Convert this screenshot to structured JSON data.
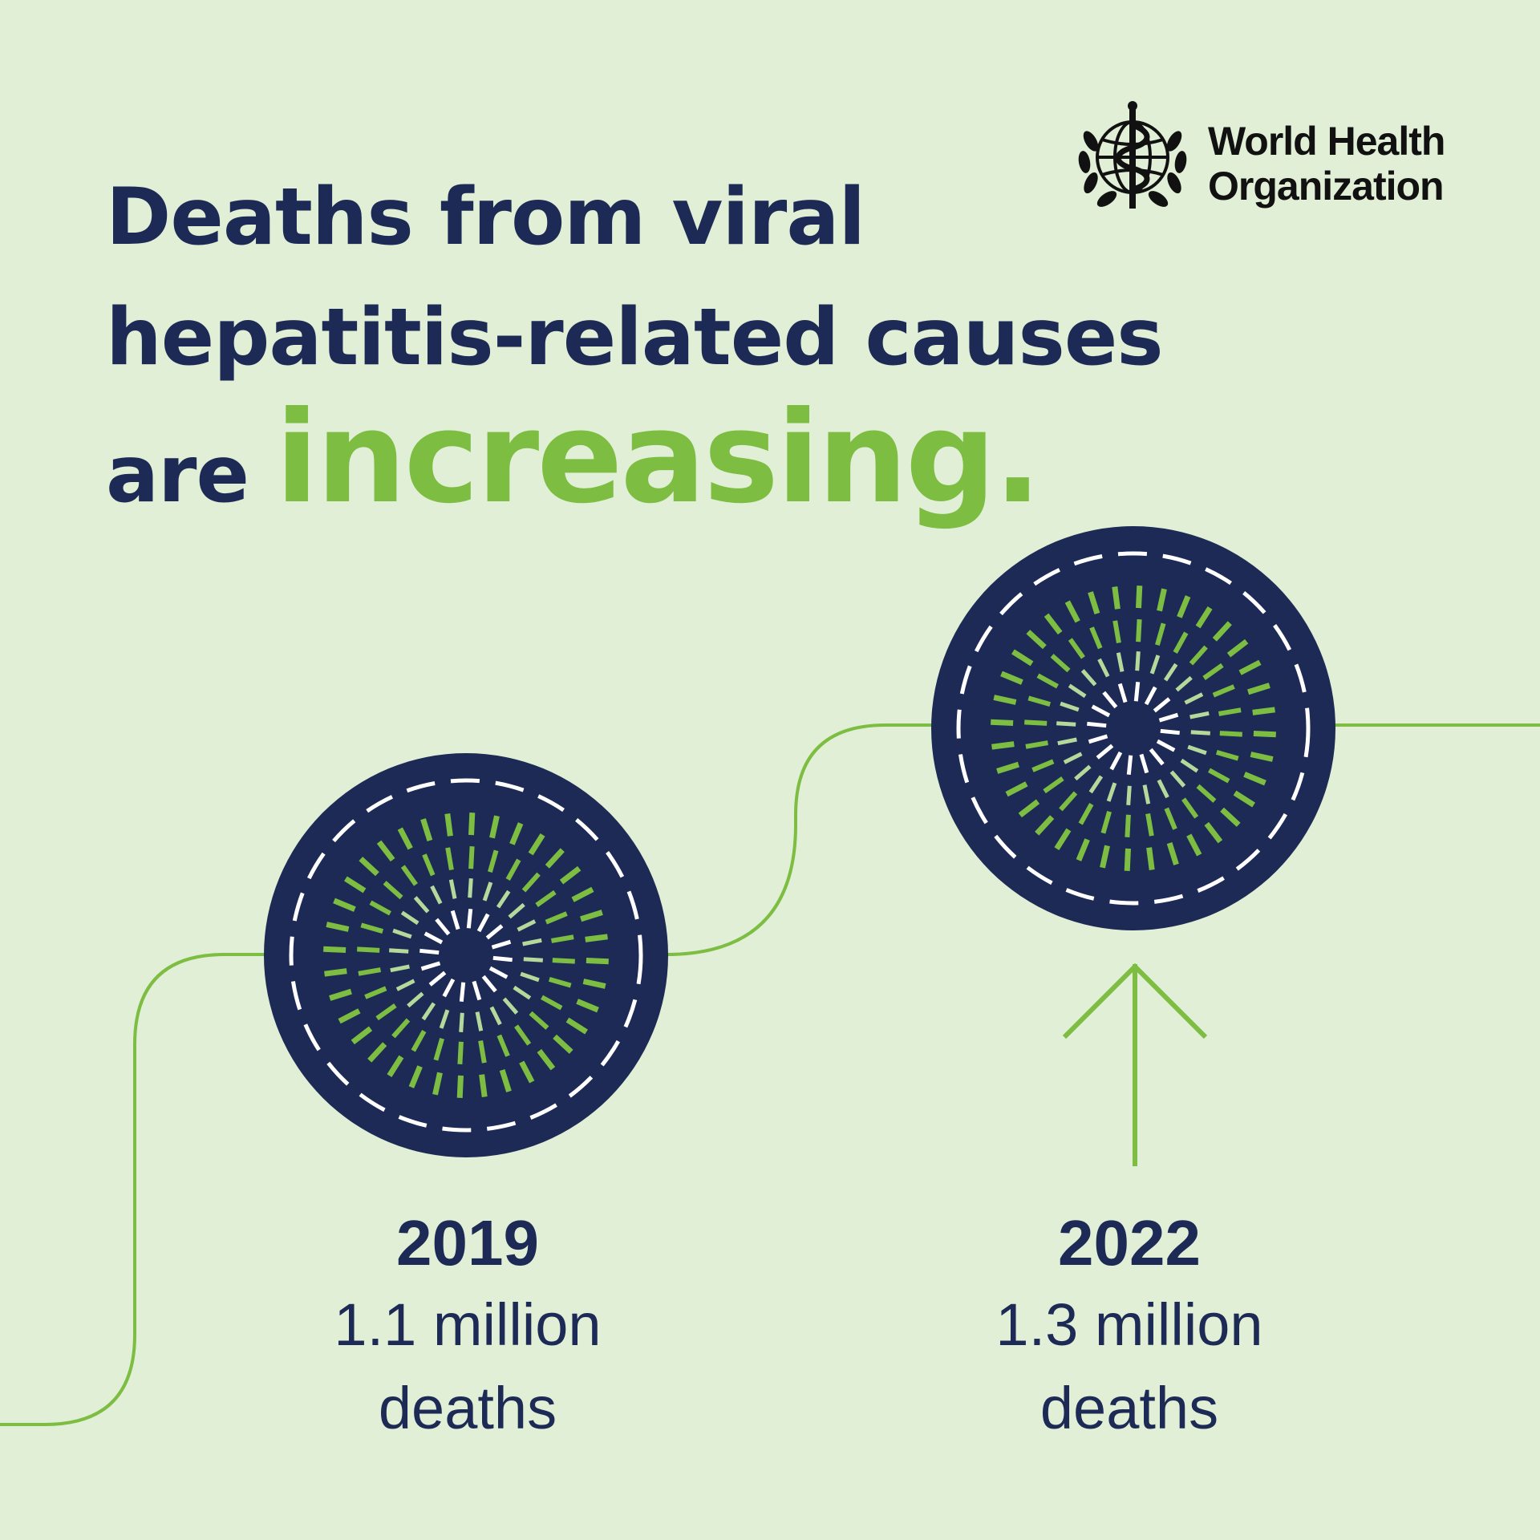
{
  "headline": {
    "line1": "Deaths from viral",
    "line2": "hepatitis-related causes",
    "line3_prefix": "are ",
    "line3_accent": "increasing."
  },
  "logo": {
    "line1": "World Health",
    "line2": "Organization",
    "icon": "who-emblem-icon"
  },
  "milestones": [
    {
      "year": "2019",
      "value": "1.1 million",
      "unit": "deaths"
    },
    {
      "year": "2022",
      "value": "1.3 million",
      "unit": "deaths"
    }
  ],
  "colors": {
    "background": "#e1efd6",
    "navy": "#1c2a55",
    "green": "#7cbd42",
    "light_green": "#b5d99a",
    "white": "#ffffff"
  },
  "icons": [
    "who-emblem-icon",
    "circle-icon",
    "arrow-up-icon",
    "step-line"
  ]
}
